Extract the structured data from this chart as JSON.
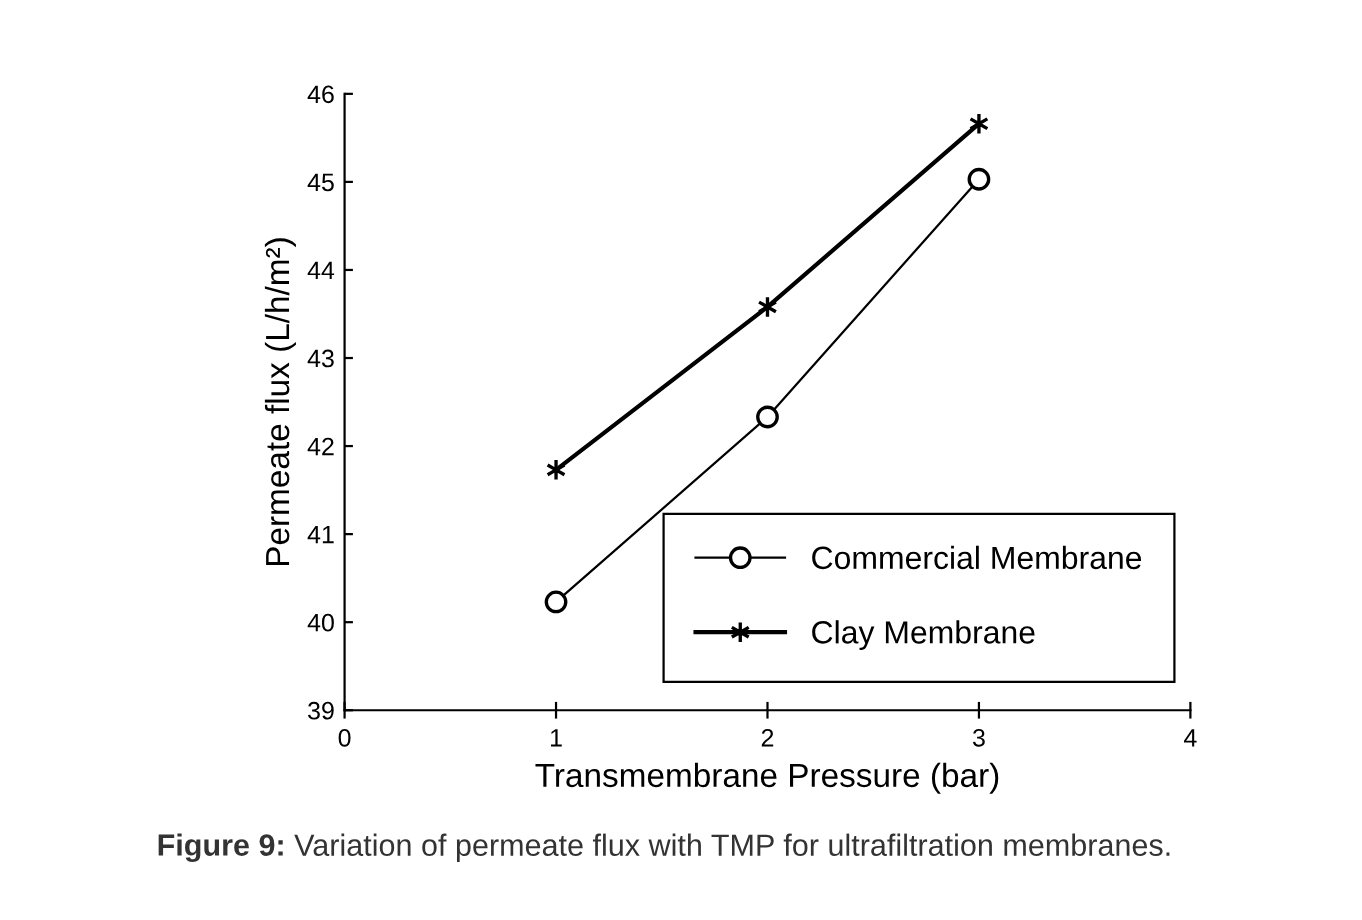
{
  "chart_data": {
    "type": "line",
    "xlabel": "Transmembrane Pressure (bar)",
    "ylabel": "Permeate flux (L/h/m²)",
    "x": [
      1,
      2,
      3
    ],
    "series": [
      {
        "name": "Commercial Membrane",
        "color": "#000000",
        "marker": "circle",
        "values": [
          40.23,
          42.33,
          45.03
        ]
      },
      {
        "name": "Clay Membrane",
        "color": "#000000",
        "marker": "cross",
        "values": [
          41.73,
          43.58,
          45.66
        ]
      }
    ],
    "xlim": [
      0,
      4
    ],
    "xticks": [
      0,
      1,
      2,
      3,
      4
    ],
    "ylim": [
      39,
      46
    ],
    "yticks": [
      39,
      40,
      41,
      42,
      43,
      44,
      45,
      46
    ],
    "grid": false,
    "legend": "bottom right",
    "line_style": "solid",
    "annotations": [
      "Figure 9:",
      "Variation of permeate flux with TMP for ultrafiltration membranes."
    ]
  }
}
